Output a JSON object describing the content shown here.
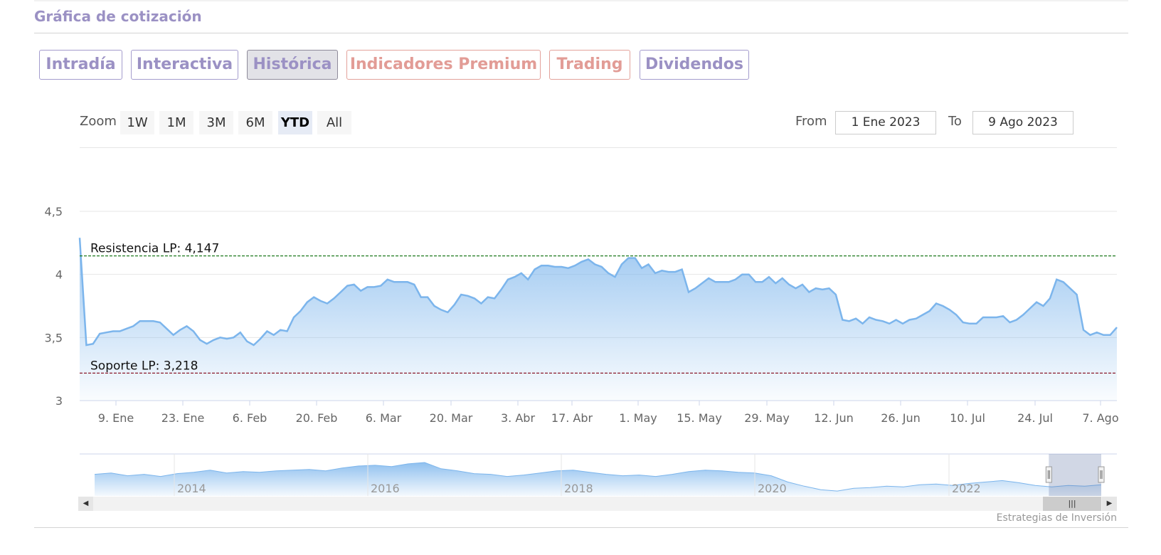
{
  "header": {
    "title": "Gráfica de cotización"
  },
  "tabs": [
    {
      "label": "Intradía",
      "style": "normal",
      "active": false
    },
    {
      "label": "Interactiva",
      "style": "normal",
      "active": false
    },
    {
      "label": "Histórica",
      "style": "normal",
      "active": true
    },
    {
      "label": "Indicadores Premium",
      "style": "salmon",
      "active": false
    },
    {
      "label": "Trading",
      "style": "salmon",
      "active": false
    },
    {
      "label": "Dividendos",
      "style": "normal",
      "active": false
    }
  ],
  "toolbar": {
    "zoom_label": "Zoom",
    "zoom_buttons": [
      "1W",
      "1M",
      "3M",
      "6M",
      "YTD",
      "All"
    ],
    "zoom_selected": "YTD",
    "from_label": "From",
    "from_value": "1 Ene 2023",
    "to_label": "To",
    "to_value": "9 Ago 2023"
  },
  "colors": {
    "accent_purple": "#9b91c4",
    "accent_salmon": "#e29c96",
    "series_line": "#7cb5ec",
    "resistance_line": "#1f7a1f",
    "support_line": "#8b1a2b"
  },
  "chart_data": {
    "type": "area",
    "ylim": [
      3,
      4.5
    ],
    "yticks": [
      "4,5",
      "4",
      "3,5",
      "3"
    ],
    "x_ticks": [
      "9. Ene",
      "23. Ene",
      "6. Feb",
      "20. Feb",
      "6. Mar",
      "20. Mar",
      "3. Abr",
      "17. Abr",
      "1. May",
      "15. May",
      "29. May",
      "12. Jun",
      "26. Jun",
      "10. Jul",
      "24. Jul",
      "7. Ago"
    ],
    "plot_lines": [
      {
        "label": "Resistencia LP: 4,147",
        "value": 4.147,
        "color": "#1f7a1f"
      },
      {
        "label": "Soporte LP: 3,218",
        "value": 3.218,
        "color": "#8b1a2b"
      }
    ],
    "values": [
      4.29,
      3.44,
      3.45,
      3.53,
      3.54,
      3.55,
      3.55,
      3.57,
      3.59,
      3.63,
      3.63,
      3.63,
      3.62,
      3.57,
      3.52,
      3.56,
      3.59,
      3.55,
      3.48,
      3.45,
      3.48,
      3.5,
      3.49,
      3.5,
      3.54,
      3.47,
      3.44,
      3.49,
      3.55,
      3.52,
      3.56,
      3.55,
      3.66,
      3.71,
      3.78,
      3.82,
      3.79,
      3.77,
      3.81,
      3.86,
      3.91,
      3.92,
      3.87,
      3.9,
      3.9,
      3.91,
      3.96,
      3.94,
      3.94,
      3.94,
      3.92,
      3.82,
      3.82,
      3.75,
      3.72,
      3.7,
      3.76,
      3.84,
      3.83,
      3.81,
      3.77,
      3.82,
      3.81,
      3.88,
      3.96,
      3.98,
      4.01,
      3.96,
      4.04,
      4.07,
      4.07,
      4.06,
      4.06,
      4.05,
      4.07,
      4.1,
      4.12,
      4.08,
      4.06,
      4.01,
      3.98,
      4.08,
      4.13,
      4.13,
      4.05,
      4.08,
      4.01,
      4.03,
      4.02,
      4.02,
      4.04,
      3.86,
      3.89,
      3.93,
      3.97,
      3.94,
      3.94,
      3.94,
      3.96,
      4.0,
      4.0,
      3.94,
      3.94,
      3.98,
      3.93,
      3.97,
      3.92,
      3.89,
      3.92,
      3.86,
      3.89,
      3.88,
      3.89,
      3.84,
      3.64,
      3.63,
      3.65,
      3.61,
      3.66,
      3.64,
      3.63,
      3.61,
      3.64,
      3.61,
      3.64,
      3.65,
      3.68,
      3.71,
      3.77,
      3.75,
      3.72,
      3.68,
      3.62,
      3.61,
      3.61,
      3.66,
      3.66,
      3.66,
      3.67,
      3.62,
      3.64,
      3.68,
      3.73,
      3.78,
      3.75,
      3.81,
      3.96,
      3.94,
      3.89,
      3.84,
      3.56,
      3.52,
      3.54,
      3.52,
      3.52,
      3.58
    ],
    "navigator": {
      "year_labels": [
        "2014",
        "2016",
        "2018",
        "2020",
        "2022"
      ],
      "values": [
        0.62,
        0.66,
        0.58,
        0.62,
        0.56,
        0.64,
        0.68,
        0.74,
        0.66,
        0.7,
        0.68,
        0.72,
        0.74,
        0.76,
        0.72,
        0.8,
        0.86,
        0.88,
        0.84,
        0.92,
        0.96,
        0.78,
        0.72,
        0.64,
        0.62,
        0.56,
        0.6,
        0.66,
        0.72,
        0.74,
        0.68,
        0.62,
        0.58,
        0.6,
        0.56,
        0.62,
        0.7,
        0.74,
        0.72,
        0.68,
        0.66,
        0.58,
        0.4,
        0.28,
        0.18,
        0.14,
        0.22,
        0.24,
        0.28,
        0.26,
        0.32,
        0.34,
        0.3,
        0.36,
        0.4,
        0.44,
        0.38,
        0.3,
        0.26,
        0.3,
        0.28,
        0.32
      ],
      "selected_range": [
        0.9487,
        1.0
      ]
    }
  },
  "footer": {
    "credit": "Estrategias de Inversión"
  }
}
